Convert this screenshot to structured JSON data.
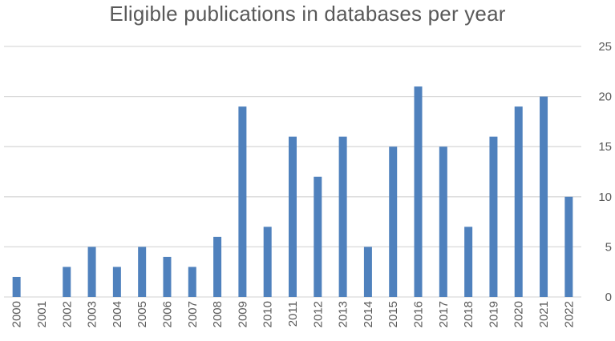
{
  "chart_data": {
    "type": "bar",
    "title": "Eligible publications in databases per year",
    "xlabel": "",
    "ylabel": "",
    "categories": [
      "2000",
      "2001",
      "2002",
      "2003",
      "2004",
      "2005",
      "2006",
      "2007",
      "2008",
      "2009",
      "2010",
      "2011",
      "2012",
      "2013",
      "2014",
      "2015",
      "2016",
      "2017",
      "2018",
      "2019",
      "2020",
      "2021",
      "2022"
    ],
    "values": [
      2,
      0,
      3,
      5,
      3,
      5,
      4,
      3,
      6,
      19,
      7,
      16,
      12,
      16,
      5,
      15,
      21,
      15,
      7,
      16,
      19,
      20,
      10
    ],
    "ylim": [
      0,
      25
    ],
    "yticks": [
      0,
      5,
      10,
      15,
      20,
      25
    ],
    "y_axis_side": "right",
    "grid": true,
    "legend": "none",
    "bar_color": "#4f81bd",
    "grid_color": "#d9d9d9",
    "text_color": "#595959"
  }
}
